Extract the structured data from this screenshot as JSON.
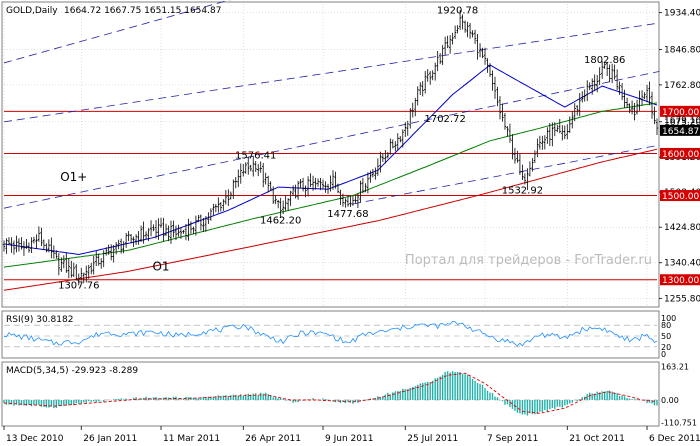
{
  "header": {
    "symbol": "GOLD,Daily",
    "ohlc": "1664.72 1667.75 1651.15 1654.87"
  },
  "watermark": "Портал для трейдеров - ForTrader.ru",
  "colors": {
    "background": "#ffffff",
    "grid": "#c0c0c0",
    "bar": "#000000",
    "channel": "#2222aa",
    "support_resistance": "#d40000",
    "ma_fast": "#0000cc",
    "ma_mid": "#008000",
    "ma_slow": "#cc0000",
    "rsi_line": "#1e90ff",
    "macd_hist": "#20b2aa",
    "macd_signal": "#dd0000",
    "price_badge": "#000000",
    "level_badge": "#d40000",
    "watermark": "#bcbcbc"
  },
  "chart_data": {
    "type": "ohlc",
    "price_axis": {
      "ylim": [
        1240,
        1955
      ],
      "ticks": [
        "1934.40",
        "1846.80",
        "1762.80",
        "1675.20",
        "1591.20",
        "1508.40",
        "1424.80",
        "1340.40",
        "1255.80"
      ]
    },
    "time_axis": {
      "labels": [
        "13 Dec 2010",
        "26 Jan 2011",
        "11 Mar 2011",
        "26 Apr 2011",
        "9 Jun 2011",
        "25 Jul 2011",
        "7 Sep 2011",
        "21 Oct 2011",
        "6 Dec 2011"
      ],
      "label_bars": [
        0,
        31,
        63,
        96,
        128,
        161,
        193,
        226,
        258
      ],
      "total_bars": 263
    },
    "levels": [
      {
        "value": 1700,
        "label": "1700.00"
      },
      {
        "value": 1600,
        "label": "1600.00"
      },
      {
        "value": 1500,
        "label": "1500.00"
      },
      {
        "value": 1300,
        "label": "1300.00"
      }
    ],
    "current_price": {
      "value": 1654.87,
      "label": "1654.87"
    },
    "extra_price_label": {
      "value": 1679.1,
      "label": "1679.10"
    },
    "price_anchors": [
      [
        0,
        1388
      ],
      [
        8,
        1375
      ],
      [
        14,
        1400
      ],
      [
        21,
        1345
      ],
      [
        30,
        1308
      ],
      [
        40,
        1355
      ],
      [
        50,
        1395
      ],
      [
        60,
        1420
      ],
      [
        70,
        1410
      ],
      [
        80,
        1440
      ],
      [
        90,
        1500
      ],
      [
        96,
        1560
      ],
      [
        101,
        1576
      ],
      [
        106,
        1520
      ],
      [
        111,
        1462
      ],
      [
        118,
        1520
      ],
      [
        125,
        1525
      ],
      [
        132,
        1535
      ],
      [
        138,
        1478
      ],
      [
        145,
        1530
      ],
      [
        152,
        1590
      ],
      [
        160,
        1650
      ],
      [
        166,
        1740
      ],
      [
        172,
        1800
      ],
      [
        178,
        1860
      ],
      [
        183,
        1915
      ],
      [
        188,
        1880
      ],
      [
        194,
        1800
      ],
      [
        199,
        1700
      ],
      [
        204,
        1610
      ],
      [
        208,
        1533
      ],
      [
        214,
        1620
      ],
      [
        220,
        1650
      ],
      [
        225,
        1640
      ],
      [
        229,
        1700
      ],
      [
        233,
        1745
      ],
      [
        237,
        1770
      ],
      [
        241,
        1800
      ],
      [
        245,
        1780
      ],
      [
        249,
        1730
      ],
      [
        253,
        1700
      ],
      [
        256,
        1750
      ],
      [
        259,
        1730
      ],
      [
        262,
        1655
      ]
    ],
    "moving_averages": [
      {
        "name": "fast",
        "color": "#0000cc",
        "points": [
          [
            0,
            1385
          ],
          [
            30,
            1360
          ],
          [
            60,
            1400
          ],
          [
            90,
            1465
          ],
          [
            110,
            1520
          ],
          [
            130,
            1515
          ],
          [
            150,
            1560
          ],
          [
            165,
            1650
          ],
          [
            180,
            1740
          ],
          [
            195,
            1810
          ],
          [
            210,
            1760
          ],
          [
            225,
            1710
          ],
          [
            240,
            1760
          ],
          [
            255,
            1730
          ],
          [
            262,
            1715
          ]
        ]
      },
      {
        "name": "mid",
        "color": "#008000",
        "points": [
          [
            0,
            1330
          ],
          [
            50,
            1370
          ],
          [
            100,
            1445
          ],
          [
            140,
            1500
          ],
          [
            170,
            1570
          ],
          [
            195,
            1630
          ],
          [
            215,
            1660
          ],
          [
            240,
            1700
          ],
          [
            262,
            1720
          ]
        ]
      },
      {
        "name": "slow",
        "color": "#cc0000",
        "points": [
          [
            0,
            1275
          ],
          [
            50,
            1320
          ],
          [
            100,
            1380
          ],
          [
            150,
            1440
          ],
          [
            190,
            1500
          ],
          [
            215,
            1540
          ],
          [
            240,
            1580
          ],
          [
            262,
            1610
          ]
        ]
      }
    ],
    "channel_lines": [
      {
        "points": [
          [
            0,
            1815
          ],
          [
            263,
            2250
          ]
        ]
      },
      {
        "points": [
          [
            0,
            1675
          ],
          [
            263,
            1910
          ]
        ]
      },
      {
        "points": [
          [
            0,
            1470
          ],
          [
            263,
            1795
          ]
        ]
      },
      {
        "points": [
          [
            140,
            1480
          ],
          [
            263,
            1620
          ]
        ]
      }
    ],
    "annotations": [
      {
        "text": "1920.78",
        "bar": 182,
        "value": 1920.78,
        "pos": "above"
      },
      {
        "text": "1702.72",
        "bar": 177,
        "value": 1702.72,
        "pos": "below"
      },
      {
        "text": "1802.86",
        "bar": 241,
        "value": 1802.86,
        "pos": "above"
      },
      {
        "text": "1576.41",
        "bar": 101,
        "value": 1576.41,
        "pos": "above"
      },
      {
        "text": "1462.20",
        "bar": 111,
        "value": 1462.2,
        "pos": "below"
      },
      {
        "text": "1477.68",
        "bar": 138,
        "value": 1477.68,
        "pos": "below"
      },
      {
        "text": "1532.92",
        "bar": 208,
        "value": 1532.92,
        "pos": "below"
      },
      {
        "text": "1307.76",
        "bar": 30,
        "value": 1307.76,
        "pos": "below"
      }
    ],
    "wave_labels": [
      {
        "text": "O1+",
        "bar": 28,
        "value": 1535
      },
      {
        "text": "O1",
        "bar": 63,
        "value": 1322
      }
    ],
    "rsi": {
      "title": "RSI(9) 30.8182",
      "ylim": [
        0,
        100
      ],
      "ticks": [
        "100",
        "80",
        "50",
        "20",
        "0"
      ],
      "levels": [
        80,
        50,
        20
      ],
      "anchors": [
        [
          0,
          55
        ],
        [
          10,
          45
        ],
        [
          20,
          30
        ],
        [
          30,
          35
        ],
        [
          40,
          60
        ],
        [
          50,
          55
        ],
        [
          60,
          62
        ],
        [
          70,
          50
        ],
        [
          80,
          62
        ],
        [
          90,
          70
        ],
        [
          96,
          80
        ],
        [
          105,
          50
        ],
        [
          112,
          35
        ],
        [
          120,
          60
        ],
        [
          130,
          55
        ],
        [
          138,
          30
        ],
        [
          145,
          55
        ],
        [
          155,
          65
        ],
        [
          165,
          80
        ],
        [
          175,
          78
        ],
        [
          183,
          88
        ],
        [
          190,
          62
        ],
        [
          199,
          40
        ],
        [
          208,
          25
        ],
        [
          215,
          55
        ],
        [
          225,
          45
        ],
        [
          233,
          70
        ],
        [
          240,
          72
        ],
        [
          245,
          55
        ],
        [
          252,
          35
        ],
        [
          258,
          55
        ],
        [
          262,
          30
        ]
      ]
    },
    "macd": {
      "title": "MACD(5,34,5) -29.923 -8.289",
      "ticks": [
        "163.21",
        "0.00",
        "-110.751"
      ],
      "ylim": [
        -112,
        165
      ],
      "hist_anchors": [
        [
          0,
          -20
        ],
        [
          20,
          -35
        ],
        [
          35,
          -10
        ],
        [
          55,
          10
        ],
        [
          75,
          10
        ],
        [
          95,
          25
        ],
        [
          105,
          30
        ],
        [
          115,
          -10
        ],
        [
          125,
          5
        ],
        [
          140,
          -15
        ],
        [
          150,
          15
        ],
        [
          160,
          50
        ],
        [
          170,
          85
        ],
        [
          178,
          140
        ],
        [
          185,
          130
        ],
        [
          193,
          60
        ],
        [
          200,
          -10
        ],
        [
          208,
          -75
        ],
        [
          215,
          -60
        ],
        [
          225,
          -30
        ],
        [
          235,
          30
        ],
        [
          242,
          45
        ],
        [
          250,
          10
        ],
        [
          256,
          -5
        ],
        [
          262,
          -30
        ]
      ],
      "signal_anchors": [
        [
          0,
          -15
        ],
        [
          20,
          -30
        ],
        [
          35,
          -15
        ],
        [
          55,
          5
        ],
        [
          75,
          8
        ],
        [
          95,
          20
        ],
        [
          105,
          25
        ],
        [
          115,
          0
        ],
        [
          125,
          0
        ],
        [
          140,
          -10
        ],
        [
          150,
          8
        ],
        [
          160,
          40
        ],
        [
          170,
          75
        ],
        [
          178,
          120
        ],
        [
          185,
          130
        ],
        [
          193,
          80
        ],
        [
          200,
          15
        ],
        [
          208,
          -55
        ],
        [
          215,
          -65
        ],
        [
          225,
          -40
        ],
        [
          235,
          20
        ],
        [
          242,
          40
        ],
        [
          250,
          20
        ],
        [
          256,
          0
        ],
        [
          262,
          -8
        ]
      ]
    }
  }
}
